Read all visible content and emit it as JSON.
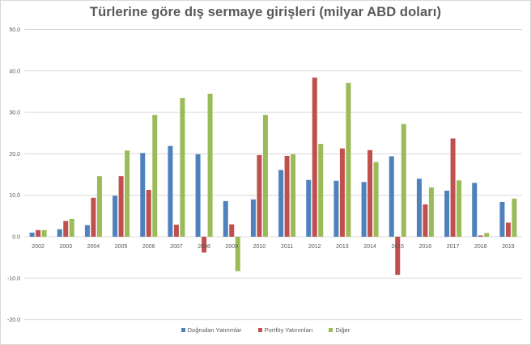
{
  "chart_data": {
    "type": "bar",
    "title": "Türlerine göre dış sermaye girişleri (milyar ABD doları)",
    "xlabel": "",
    "ylabel": "",
    "ylim": [
      -20,
      50
    ],
    "yticks": [
      "50.0",
      "40.0",
      "30.0",
      "20.0",
      "10.0",
      "0.0",
      "-10.0",
      "-20.0"
    ],
    "grid": true,
    "legend_position": "bottom",
    "categories": [
      "2002",
      "2003",
      "2004",
      "2005",
      "2006",
      "2007",
      "2008",
      "2009",
      "2010",
      "2011",
      "2012",
      "2013",
      "2014",
      "2015",
      "2016",
      "2017",
      "2018",
      "2019"
    ],
    "series": [
      {
        "name": "Doğrudan Yatırımlar",
        "color": "#4F81BD",
        "values": [
          1.0,
          1.8,
          2.8,
          9.9,
          20.2,
          21.9,
          19.9,
          8.6,
          9.0,
          16.1,
          13.7,
          13.5,
          13.2,
          19.4,
          14.0,
          11.1,
          13.0,
          8.4
        ]
      },
      {
        "name": "Portföy Yatırımları",
        "color": "#C0504D",
        "values": [
          1.6,
          3.8,
          9.4,
          14.6,
          11.3,
          2.9,
          -3.8,
          3.0,
          19.7,
          19.5,
          38.4,
          21.3,
          20.9,
          -9.2,
          7.8,
          23.7,
          0.3,
          3.4
        ]
      },
      {
        "name": "Diğer",
        "color": "#9BBB59",
        "values": [
          1.6,
          4.3,
          14.6,
          20.8,
          29.4,
          33.5,
          34.5,
          -8.3,
          29.4,
          19.9,
          22.4,
          37.1,
          18.0,
          27.2,
          11.9,
          13.6,
          0.9,
          9.2
        ]
      }
    ]
  },
  "legend": {
    "items": [
      {
        "label": "Doğrudan Yatırımlar",
        "color": "#4F81BD"
      },
      {
        "label": "Portföy Yatırımları",
        "color": "#C0504D"
      },
      {
        "label": "Diğer",
        "color": "#9BBB59"
      }
    ]
  },
  "colors": {
    "grid": "#d9d9d9",
    "axis_text": "#595959",
    "title_text": "#595959"
  }
}
